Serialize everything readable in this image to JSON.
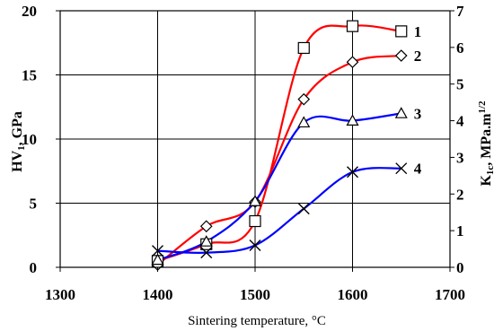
{
  "chart_data": {
    "type": "line",
    "xlabel": "Sintering temperature, °C",
    "ylabel_left": "HV",
    "ylabel_left_sub": "1",
    "ylabel_left_suffix": ", GPa",
    "ylabel_right": "K",
    "ylabel_right_sub": "1c",
    "ylabel_right_suffix": ", MPa.m",
    "ylabel_right_sup": "1/2",
    "xlim": [
      1300,
      1700
    ],
    "ylim_left": [
      0,
      20
    ],
    "ylim_right": [
      0,
      7
    ],
    "x_ticks": [
      "1300",
      "1400",
      "1500",
      "1600",
      "1700"
    ],
    "y_left_ticks": [
      "0",
      "5",
      "10",
      "15",
      "20"
    ],
    "y_right_ticks": [
      "0",
      "1",
      "2",
      "3",
      "4",
      "5",
      "6",
      "7"
    ],
    "grid": true,
    "series": [
      {
        "label": "1",
        "axis": "left",
        "marker": "square",
        "color": "#ff0000",
        "x": [
          1400,
          1450,
          1500,
          1550,
          1600,
          1650
        ],
        "y": [
          0.5,
          1.8,
          3.6,
          17.1,
          18.8,
          18.4
        ]
      },
      {
        "label": "2",
        "axis": "left",
        "marker": "diamond",
        "color": "#ff0000",
        "x": [
          1400,
          1450,
          1500,
          1550,
          1600,
          1650
        ],
        "y": [
          0.2,
          3.2,
          5.1,
          13.1,
          16.0,
          16.5
        ]
      },
      {
        "label": "3",
        "axis": "right",
        "marker": "triangle",
        "color": "#0000ff",
        "x": [
          1400,
          1450,
          1500,
          1550,
          1600,
          1650
        ],
        "y": [
          0.2,
          0.7,
          1.8,
          3.95,
          4.0,
          4.2
        ]
      },
      {
        "label": "4",
        "axis": "right",
        "marker": "x",
        "color": "#0000ff",
        "x": [
          1400,
          1450,
          1500,
          1550,
          1600,
          1650
        ],
        "y": [
          0.45,
          0.4,
          0.6,
          1.6,
          2.6,
          2.7
        ]
      }
    ]
  }
}
